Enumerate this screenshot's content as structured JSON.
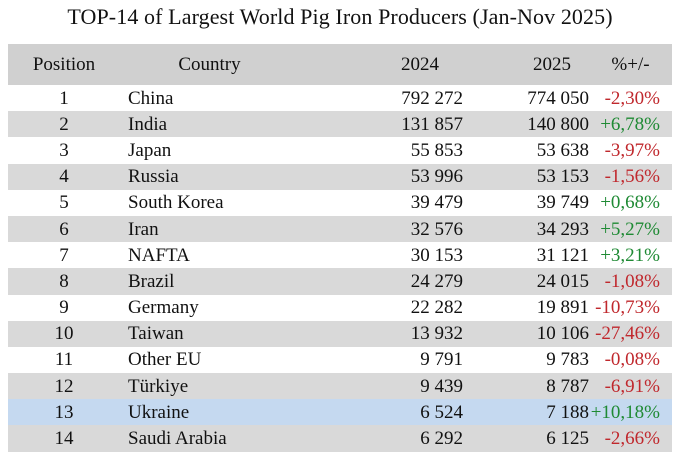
{
  "title": "TOP-14 of Largest World Pig Iron Producers (Jan-Nov 2025)",
  "headers": {
    "position": "Position",
    "country": "Country",
    "y2024": "2024",
    "y2025": "2025",
    "change": "%+/-"
  },
  "colors": {
    "header_bg": "#d0d0d0",
    "row_shade": "#d9d9d9",
    "ukraine_highlight": "#c5d9f0",
    "negative": "#c0282d",
    "positive": "#1f8a34"
  },
  "rows": [
    {
      "position": "1",
      "country": "China",
      "y2024": "792 272",
      "y2025": "774 050",
      "change": "-2,30%",
      "sign": "neg"
    },
    {
      "position": "2",
      "country": "India",
      "y2024": "131 857",
      "y2025": "140 800",
      "change": "+6,78%",
      "sign": "pos"
    },
    {
      "position": "3",
      "country": "Japan",
      "y2024": "55 853",
      "y2025": "53 638",
      "change": "-3,97%",
      "sign": "neg"
    },
    {
      "position": "4",
      "country": "Russia",
      "y2024": "53 996",
      "y2025": "53 153",
      "change": "-1,56%",
      "sign": "neg"
    },
    {
      "position": "5",
      "country": "South Korea",
      "y2024": "39 479",
      "y2025": "39 749",
      "change": "+0,68%",
      "sign": "pos"
    },
    {
      "position": "6",
      "country": "Iran",
      "y2024": "32 576",
      "y2025": "34 293",
      "change": "+5,27%",
      "sign": "pos"
    },
    {
      "position": "7",
      "country": "NAFTA",
      "y2024": "30 153",
      "y2025": "31 121",
      "change": "+3,21%",
      "sign": "pos"
    },
    {
      "position": "8",
      "country": "Brazil",
      "y2024": "24 279",
      "y2025": "24 015",
      "change": "-1,08%",
      "sign": "neg"
    },
    {
      "position": "9",
      "country": "Germany",
      "y2024": "22 282",
      "y2025": "19 891",
      "change": "-10,73%",
      "sign": "neg"
    },
    {
      "position": "10",
      "country": "Taiwan",
      "y2024": "13 932",
      "y2025": "10 106",
      "change": "-27,46%",
      "sign": "neg"
    },
    {
      "position": "11",
      "country": "Other EU",
      "y2024": "9 791",
      "y2025": "9 783",
      "change": "-0,08%",
      "sign": "neg"
    },
    {
      "position": "12",
      "country": "Türkiye",
      "y2024": "9 439",
      "y2025": "8 787",
      "change": "-6,91%",
      "sign": "neg"
    },
    {
      "position": "13",
      "country": "Ukraine",
      "y2024": "6 524",
      "y2025": "7 188",
      "change": "+10,18%",
      "sign": "pos"
    },
    {
      "position": "14",
      "country": "Saudi Arabia",
      "y2024": "6 292",
      "y2025": "6 125",
      "change": "-2,66%",
      "sign": "neg"
    }
  ]
}
